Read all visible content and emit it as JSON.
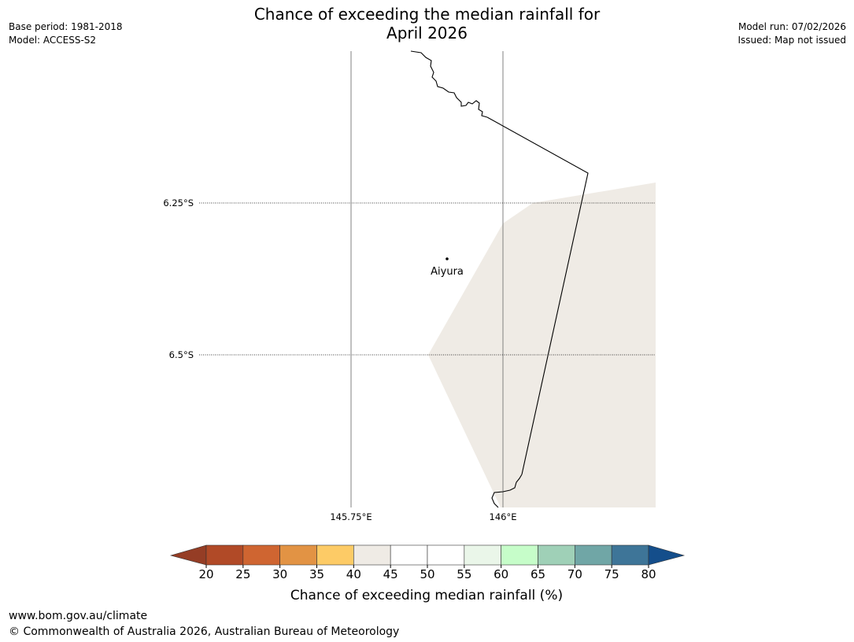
{
  "title": {
    "line1": "Chance of exceeding the median rainfall for",
    "line2": "April 2026"
  },
  "meta_left": {
    "base_period": "Base period: 1981-2018",
    "model": "Model: ACCESS-S2"
  },
  "meta_right": {
    "model_run": "Model run: 07/02/2026",
    "issued": "Issued: Map not issued"
  },
  "map": {
    "latitude_labels": [
      "6.25°S",
      "6.5°S"
    ],
    "longitude_labels": [
      "145.75°E",
      "146°E"
    ],
    "place": "Aiyura",
    "region_fill_color": "#efebe5",
    "region_category": "40-45"
  },
  "colorbar": {
    "label": "Chance of exceeding median rainfall (%)",
    "ticks": [
      "20",
      "25",
      "30",
      "35",
      "40",
      "45",
      "50",
      "55",
      "60",
      "65",
      "70",
      "75",
      "80"
    ],
    "under_color": "#953d25",
    "over_color": "#144e8b",
    "colors": [
      "#b14a27",
      "#cf6531",
      "#e29344",
      "#fdcb66",
      "#efebe5",
      "#ffffff",
      "#ffffff",
      "#eaf6e9",
      "#c6fdc9",
      "#9fd0b7",
      "#70a6a6",
      "#3e7598"
    ]
  },
  "footer": {
    "url": "www.bom.gov.au/climate",
    "copyright": "© Commonwealth of Australia 2026, Australian Bureau of Meteorology"
  }
}
